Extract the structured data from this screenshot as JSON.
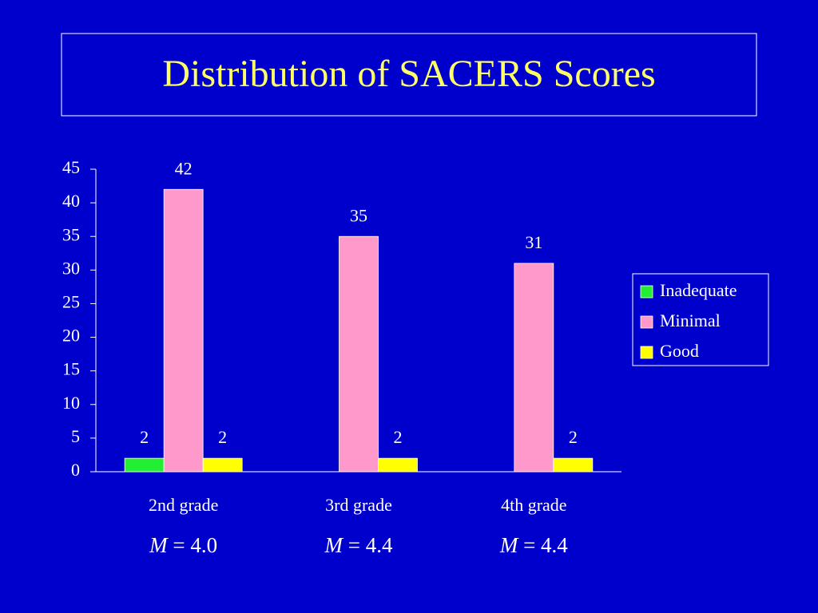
{
  "chart_data": {
    "type": "bar",
    "title": "Distribution of SACERS Scores",
    "categories": [
      "2nd grade",
      "3rd grade",
      "4th grade"
    ],
    "series": [
      {
        "name": "Inadequate",
        "color": "#22ee33",
        "values": [
          2,
          null,
          null
        ]
      },
      {
        "name": "Minimal",
        "color": "#ff99cc",
        "values": [
          42,
          35,
          31
        ]
      },
      {
        "name": "Good",
        "color": "#ffff00",
        "values": [
          2,
          2,
          2
        ]
      }
    ],
    "annotations": [
      "M = 4.0",
      "M = 4.4",
      "M = 4.4"
    ],
    "ylim": [
      0,
      45
    ],
    "yticks": [
      0,
      5,
      10,
      15,
      20,
      25,
      30,
      35,
      40,
      45
    ],
    "legend": "right",
    "grid": false
  }
}
